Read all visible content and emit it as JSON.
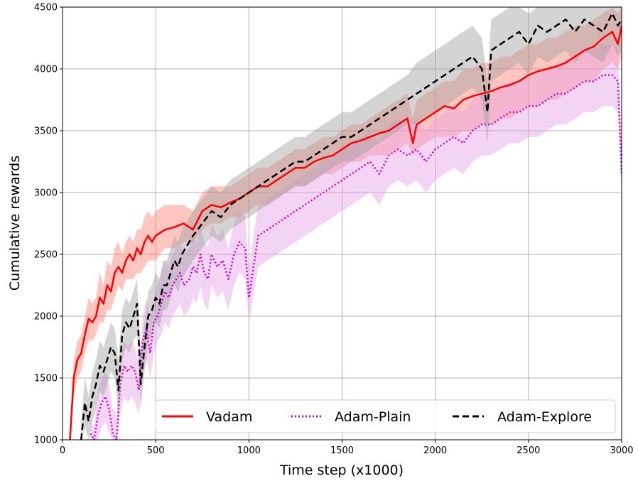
{
  "chart_data": {
    "type": "line",
    "title": "",
    "xlabel": "Time step (x1000)",
    "ylabel": "Cumulative rewards",
    "xlim": [
      0,
      3000
    ],
    "ylim": [
      1000,
      4500
    ],
    "x_ticks": [
      0,
      500,
      1000,
      1500,
      2000,
      2500,
      3000
    ],
    "y_ticks": [
      1000,
      1500,
      2000,
      2500,
      3000,
      3500,
      4000,
      4500
    ],
    "grid": true,
    "legend_position": "bottom-right",
    "series": [
      {
        "name": "Vadam",
        "color": "#ff0000",
        "dash": "solid",
        "band_color": "#ff8070",
        "x": [
          40,
          60,
          80,
          100,
          120,
          140,
          160,
          180,
          200,
          220,
          240,
          260,
          280,
          300,
          320,
          340,
          360,
          380,
          400,
          420,
          440,
          460,
          480,
          500,
          550,
          600,
          650,
          700,
          750,
          800,
          850,
          900,
          950,
          1000,
          1050,
          1100,
          1150,
          1200,
          1250,
          1300,
          1350,
          1400,
          1450,
          1500,
          1550,
          1600,
          1650,
          1700,
          1750,
          1800,
          1850,
          1880,
          1900,
          1950,
          2000,
          2050,
          2100,
          2150,
          2200,
          2250,
          2300,
          2350,
          2400,
          2450,
          2500,
          2550,
          2600,
          2650,
          2700,
          2750,
          2800,
          2850,
          2900,
          2950,
          2980,
          3000
        ],
        "values": [
          1000,
          1500,
          1650,
          1700,
          1850,
          1980,
          1950,
          2000,
          2150,
          2100,
          2250,
          2200,
          2350,
          2400,
          2350,
          2450,
          2500,
          2450,
          2550,
          2500,
          2600,
          2650,
          2600,
          2650,
          2700,
          2720,
          2750,
          2700,
          2850,
          2900,
          2880,
          2920,
          2950,
          3000,
          3050,
          3050,
          3100,
          3150,
          3200,
          3200,
          3250,
          3280,
          3300,
          3350,
          3400,
          3420,
          3450,
          3480,
          3500,
          3550,
          3600,
          3400,
          3550,
          3600,
          3650,
          3700,
          3680,
          3750,
          3780,
          3800,
          3820,
          3850,
          3870,
          3900,
          3950,
          3980,
          4000,
          4020,
          4050,
          4100,
          4150,
          4180,
          4250,
          4300,
          4200,
          4350
        ],
        "band": {
          "lower": [
            1000,
            1350,
            1500,
            1550,
            1700,
            1800,
            1800,
            1850,
            1950,
            1950,
            2050,
            2050,
            2150,
            2250,
            2200,
            2300,
            2300,
            2300,
            2350,
            2350,
            2400,
            2450,
            2450,
            2450,
            2550,
            2550,
            2600,
            2600,
            2700,
            2750,
            2750,
            2800,
            2800,
            2850,
            2900,
            2900,
            2950,
            3000,
            3050,
            3050,
            3100,
            3150,
            3150,
            3200,
            3250,
            3250,
            3300,
            3300,
            3300,
            3350,
            3400,
            3300,
            3350,
            3400,
            3450,
            3450,
            3450,
            3500,
            3500,
            3550,
            3550,
            3600,
            3600,
            3650,
            3700,
            3700,
            3750,
            3750,
            3800,
            3850,
            3900,
            3900,
            4000,
            4050,
            4000,
            4100
          ],
          "upper": [
            1000,
            1650,
            1800,
            1850,
            2000,
            2150,
            2100,
            2150,
            2350,
            2250,
            2450,
            2400,
            2550,
            2600,
            2500,
            2600,
            2650,
            2600,
            2700,
            2700,
            2800,
            2850,
            2800,
            2850,
            2900,
            2900,
            2900,
            2850,
            3000,
            3050,
            3050,
            3050,
            3100,
            3150,
            3200,
            3200,
            3250,
            3300,
            3350,
            3350,
            3400,
            3450,
            3450,
            3500,
            3550,
            3550,
            3600,
            3650,
            3700,
            3750,
            3800,
            3600,
            3750,
            3800,
            3850,
            3900,
            3900,
            4000,
            4000,
            4050,
            4050,
            4100,
            4100,
            4150,
            4200,
            4200,
            4250,
            4250,
            4300,
            4350,
            4350,
            4400,
            4450,
            4500,
            4450,
            4500
          ]
        }
      },
      {
        "name": "Adam-Plain",
        "color": "#cc00cc",
        "dash": "dotted",
        "band_color": "#e6a0e6",
        "x": [
          150,
          170,
          190,
          210,
          230,
          250,
          270,
          290,
          310,
          330,
          350,
          370,
          390,
          410,
          430,
          450,
          470,
          490,
          510,
          530,
          550,
          570,
          590,
          610,
          630,
          650,
          680,
          700,
          720,
          740,
          760,
          780,
          800,
          830,
          860,
          890,
          920,
          950,
          980,
          1000,
          1050,
          1100,
          1150,
          1200,
          1250,
          1300,
          1350,
          1400,
          1450,
          1500,
          1550,
          1600,
          1650,
          1700,
          1750,
          1800,
          1850,
          1900,
          1950,
          2000,
          2050,
          2100,
          2150,
          2200,
          2250,
          2300,
          2350,
          2400,
          2450,
          2500,
          2550,
          2600,
          2650,
          2700,
          2750,
          2800,
          2850,
          2900,
          2950,
          2980,
          3000
        ],
        "values": [
          1050,
          1000,
          1200,
          1300,
          1350,
          1250,
          1050,
          1000,
          1450,
          1600,
          1550,
          1600,
          1550,
          1400,
          1800,
          1900,
          1700,
          1950,
          2000,
          2100,
          2200,
          2150,
          2250,
          2300,
          2350,
          2250,
          2300,
          2400,
          2350,
          2500,
          2350,
          2300,
          2500,
          2400,
          2450,
          2300,
          2500,
          2600,
          2550,
          2150,
          2650,
          2700,
          2750,
          2800,
          2850,
          2900,
          2950,
          3000,
          3050,
          3100,
          3150,
          3200,
          3250,
          3150,
          3300,
          3350,
          3300,
          3350,
          3250,
          3350,
          3400,
          3450,
          3400,
          3500,
          3550,
          3550,
          3600,
          3650,
          3650,
          3700,
          3700,
          3750,
          3800,
          3800,
          3850,
          3900,
          3900,
          3950,
          3950,
          3900,
          3150
        ],
        "band": {
          "lower": [
            1000,
            1000,
            1000,
            1100,
            1150,
            1050,
            1000,
            1000,
            1200,
            1350,
            1300,
            1350,
            1300,
            1200,
            1550,
            1650,
            1500,
            1700,
            1800,
            1850,
            1950,
            1900,
            2000,
            2050,
            2100,
            2000,
            2050,
            2150,
            2100,
            2250,
            2100,
            2050,
            2250,
            2150,
            2200,
            2050,
            2250,
            2350,
            2300,
            1950,
            2400,
            2450,
            2500,
            2550,
            2600,
            2650,
            2700,
            2750,
            2800,
            2850,
            2900,
            2950,
            3000,
            2900,
            3050,
            3100,
            3050,
            3100,
            3000,
            3100,
            3150,
            3200,
            3150,
            3250,
            3300,
            3300,
            3350,
            3400,
            3400,
            3450,
            3450,
            3500,
            3550,
            3550,
            3600,
            3650,
            3650,
            3700,
            3700,
            3650,
            2950
          ],
          "upper": [
            1150,
            1100,
            1400,
            1500,
            1550,
            1450,
            1250,
            1200,
            1650,
            1800,
            1750,
            1800,
            1750,
            1600,
            2000,
            2150,
            1950,
            2150,
            2250,
            2350,
            2450,
            2400,
            2500,
            2550,
            2600,
            2500,
            2550,
            2650,
            2600,
            2750,
            2600,
            2550,
            2750,
            2650,
            2700,
            2550,
            2750,
            2850,
            2800,
            2400,
            2900,
            2950,
            3000,
            3050,
            3100,
            3150,
            3200,
            3250,
            3300,
            3350,
            3400,
            3450,
            3500,
            3400,
            3550,
            3600,
            3550,
            3600,
            3500,
            3600,
            3650,
            3700,
            3650,
            3750,
            3800,
            3800,
            3850,
            3900,
            3900,
            3950,
            3950,
            4000,
            4050,
            4050,
            4100,
            4150,
            4150,
            4200,
            4200,
            4150,
            3400
          ]
        }
      },
      {
        "name": "Adam-Explore",
        "color": "#000000",
        "dash": "dashed",
        "band_color": "#a0a0a0",
        "x": [
          100,
          120,
          140,
          160,
          180,
          200,
          220,
          240,
          260,
          280,
          300,
          320,
          340,
          360,
          380,
          400,
          420,
          440,
          460,
          480,
          500,
          520,
          540,
          560,
          580,
          600,
          620,
          640,
          660,
          680,
          700,
          750,
          800,
          850,
          900,
          950,
          1000,
          1050,
          1100,
          1150,
          1200,
          1250,
          1300,
          1350,
          1400,
          1450,
          1500,
          1550,
          1600,
          1650,
          1700,
          1750,
          1800,
          1850,
          1900,
          1950,
          2000,
          2050,
          2100,
          2150,
          2200,
          2250,
          2280,
          2300,
          2350,
          2400,
          2450,
          2500,
          2550,
          2600,
          2650,
          2700,
          2750,
          2800,
          2850,
          2900,
          2950,
          2980,
          3000
        ],
        "values": [
          1000,
          1300,
          1150,
          1350,
          1450,
          1600,
          1550,
          1650,
          1750,
          1700,
          1400,
          1850,
          1950,
          1900,
          2000,
          2100,
          1450,
          1750,
          2000,
          2050,
          2150,
          2100,
          2250,
          2250,
          2350,
          2450,
          2400,
          2500,
          2550,
          2600,
          2650,
          2750,
          2850,
          2800,
          2900,
          2950,
          3000,
          3050,
          3100,
          3150,
          3200,
          3250,
          3250,
          3300,
          3350,
          3400,
          3450,
          3450,
          3500,
          3550,
          3600,
          3650,
          3700,
          3750,
          3800,
          3850,
          3900,
          3950,
          4000,
          4050,
          4100,
          4000,
          3650,
          4150,
          4200,
          4250,
          4300,
          4200,
          4350,
          4300,
          4350,
          4400,
          4300,
          4400,
          4350,
          4300,
          4450,
          4350,
          4400
        ],
        "band": {
          "lower": [
            1000,
            1100,
            1000,
            1150,
            1250,
            1400,
            1350,
            1450,
            1550,
            1500,
            1200,
            1650,
            1750,
            1700,
            1800,
            1850,
            1250,
            1550,
            1800,
            1850,
            1950,
            1900,
            2050,
            2050,
            2150,
            2250,
            2200,
            2300,
            2350,
            2400,
            2450,
            2550,
            2650,
            2600,
            2700,
            2750,
            2800,
            2850,
            2900,
            2950,
            3000,
            3050,
            3050,
            3100,
            3150,
            3200,
            3250,
            3250,
            3300,
            3350,
            3400,
            3450,
            3500,
            3550,
            3550,
            3600,
            3650,
            3700,
            3750,
            3800,
            3850,
            3750,
            3400,
            3900,
            3950,
            4000,
            4050,
            3950,
            4100,
            4050,
            4100,
            4150,
            4050,
            4150,
            4100,
            4050,
            4200,
            4100,
            4150
          ],
          "upper": [
            1150,
            1500,
            1350,
            1550,
            1650,
            1800,
            1750,
            1850,
            1950,
            1900,
            1650,
            2050,
            2150,
            2100,
            2200,
            2300,
            1700,
            1950,
            2200,
            2250,
            2350,
            2300,
            2450,
            2450,
            2550,
            2650,
            2600,
            2700,
            2750,
            2800,
            2850,
            2950,
            3050,
            3000,
            3100,
            3150,
            3200,
            3250,
            3300,
            3350,
            3400,
            3450,
            3450,
            3500,
            3550,
            3600,
            3650,
            3650,
            3700,
            3750,
            3800,
            3850,
            3900,
            3950,
            4050,
            4100,
            4150,
            4200,
            4250,
            4300,
            4350,
            4250,
            3900,
            4400,
            4450,
            4500,
            4500,
            4450,
            4500,
            4500,
            4500,
            4500,
            4500,
            4500,
            4500,
            4500,
            4500,
            4500,
            4500
          ]
        }
      }
    ]
  }
}
